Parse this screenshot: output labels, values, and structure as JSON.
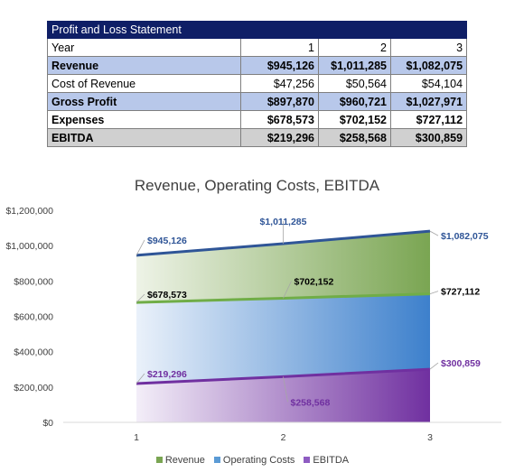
{
  "table": {
    "title": "Profit and Loss Statement",
    "header": {
      "label": "Year",
      "years": [
        "1",
        "2",
        "3"
      ]
    },
    "rows": [
      {
        "label": "Revenue",
        "values": [
          "$945,126",
          "$1,011,285",
          "$1,082,075"
        ]
      },
      {
        "label": "Cost of Revenue",
        "values": [
          "$47,256",
          "$50,564",
          "$54,104"
        ]
      },
      {
        "label": "Gross Profit",
        "values": [
          "$897,870",
          "$960,721",
          "$1,027,971"
        ]
      },
      {
        "label": "Expenses",
        "values": [
          "$678,573",
          "$702,152",
          "$727,112"
        ]
      },
      {
        "label": "EBITDA",
        "values": [
          "$219,296",
          "$258,568",
          "$300,859"
        ]
      }
    ]
  },
  "chart_data": {
    "type": "area",
    "title": "Revenue, Operating Costs, EBITDA",
    "categories": [
      "1",
      "2",
      "3"
    ],
    "ylim": [
      0,
      1200000
    ],
    "yticks": [
      "$0",
      "$200,000",
      "$400,000",
      "$600,000",
      "$800,000",
      "$1,000,000",
      "$1,200,000"
    ],
    "series": [
      {
        "name": "Revenue",
        "values": [
          945126,
          1011285,
          1082075
        ],
        "labels": [
          "$945,126",
          "$1,011,285",
          "$1,082,075"
        ],
        "line_color": "#2f5597",
        "label_color": "#2f5597"
      },
      {
        "name": "Operating Costs",
        "values": [
          678573,
          702152,
          727112
        ],
        "labels": [
          "$678,573",
          "$702,152",
          "$727,112"
        ],
        "line_color": "#70ad47",
        "label_color": "#000000"
      },
      {
        "name": "EBITDA",
        "values": [
          219296,
          258568,
          300859
        ],
        "labels": [
          "$219,296",
          "$258,568",
          "$300,859"
        ],
        "line_color": "#7030a0",
        "label_color": "#7030a0"
      }
    ],
    "legend_position": "bottom",
    "grid": false
  }
}
